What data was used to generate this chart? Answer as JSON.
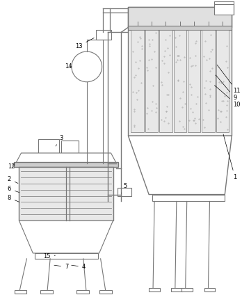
{
  "fig_width": 3.48,
  "fig_height": 4.37,
  "dpi": 100,
  "line_color": "#777777",
  "line_width": 0.8,
  "label_fontsize": 6.0
}
